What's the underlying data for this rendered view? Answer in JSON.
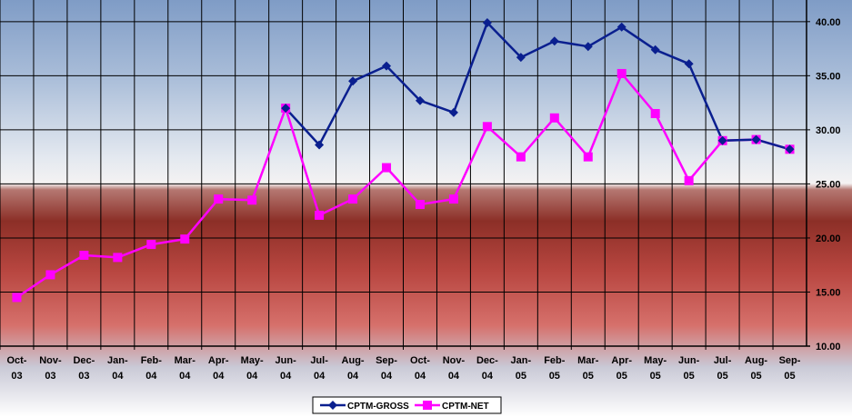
{
  "chart_data": {
    "type": "line",
    "categories": [
      [
        "Oct-",
        "03"
      ],
      [
        "Nov-",
        "03"
      ],
      [
        "Dec-",
        "03"
      ],
      [
        "Jan-",
        "04"
      ],
      [
        "Feb-",
        "04"
      ],
      [
        "Mar-",
        "04"
      ],
      [
        "Apr-",
        "04"
      ],
      [
        "May-",
        "04"
      ],
      [
        "Jun-",
        "04"
      ],
      [
        "Jul-",
        "04"
      ],
      [
        "Aug-",
        "04"
      ],
      [
        "Sep-",
        "04"
      ],
      [
        "Oct-",
        "04"
      ],
      [
        "Nov-",
        "04"
      ],
      [
        "Dec-",
        "04"
      ],
      [
        "Jan-",
        "05"
      ],
      [
        "Feb-",
        "05"
      ],
      [
        "Mar-",
        "05"
      ],
      [
        "Apr-",
        "05"
      ],
      [
        "May-",
        "05"
      ],
      [
        "Jun-",
        "05"
      ],
      [
        "Jul-",
        "05"
      ],
      [
        "Aug-",
        "05"
      ],
      [
        "Sep-",
        "05"
      ]
    ],
    "series": [
      {
        "name": "CPTM-GROSS",
        "color": "#0a1f8f",
        "marker": "diamond",
        "values": [
          null,
          null,
          null,
          null,
          null,
          null,
          null,
          null,
          32.0,
          28.6,
          34.5,
          35.9,
          32.7,
          31.6,
          39.9,
          36.7,
          38.2,
          37.7,
          39.5,
          37.4,
          36.1,
          29.0,
          29.1,
          28.2
        ]
      },
      {
        "name": "CPTM-NET",
        "color": "#ff00ff",
        "marker": "square",
        "values": [
          14.5,
          16.6,
          18.4,
          18.2,
          19.4,
          19.9,
          23.6,
          23.5,
          32.0,
          22.1,
          23.6,
          26.5,
          23.1,
          23.6,
          30.3,
          27.5,
          31.1,
          27.5,
          35.2,
          31.5,
          25.3,
          29.0,
          29.1,
          28.2
        ]
      }
    ],
    "ylim": [
      10,
      42
    ],
    "yticks": [
      "10.00",
      "15.00",
      "20.00",
      "25.00",
      "30.00",
      "35.00",
      "40.00"
    ],
    "y_axis_side": "right",
    "grid": true,
    "legend_position": "bottom-center",
    "title": "",
    "xlabel": "",
    "ylabel": ""
  }
}
